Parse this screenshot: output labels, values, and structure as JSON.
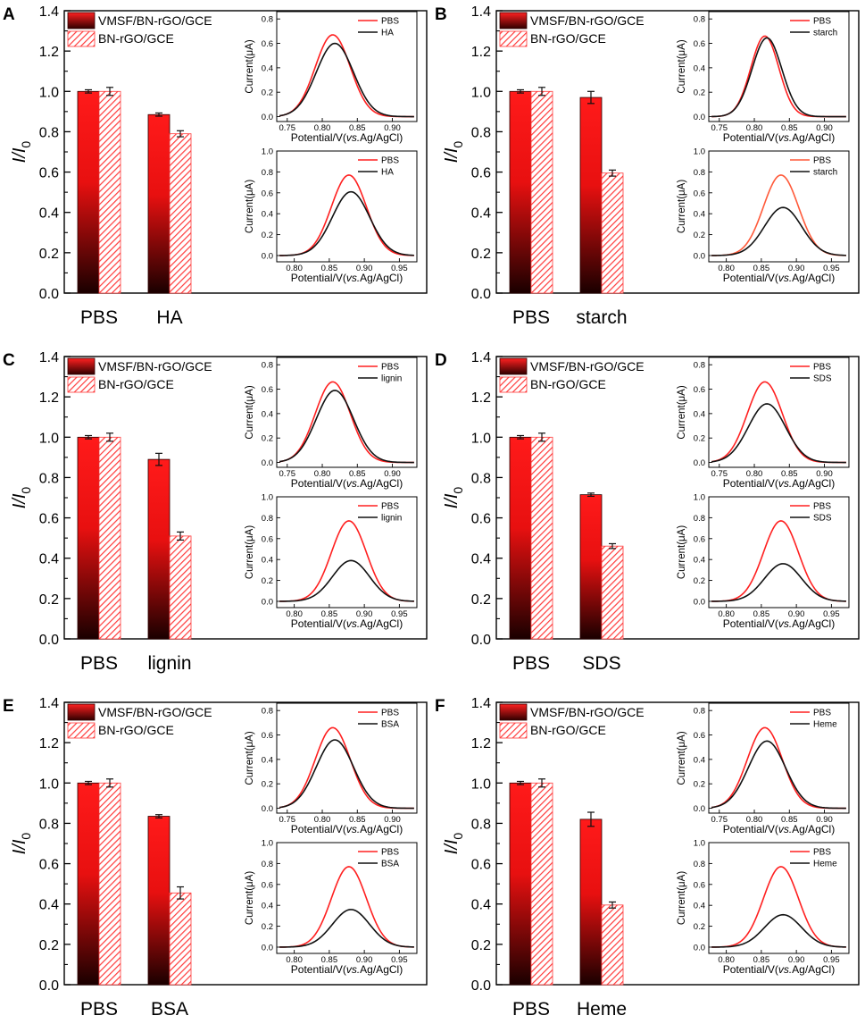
{
  "figure": {
    "ylabel": "I/I0",
    "ylabel_main": "I/I",
    "ylabel_sub": "0",
    "bar_legend": [
      "VMSF/BN-rGO/GCE",
      "BN-rGO/GCE"
    ],
    "inset_xlabel_prefix": "Potential/V(",
    "inset_xlabel_vs": "vs.",
    "inset_xlabel_suffix": "Ag/AgCl)",
    "inset_ylabel": "Current(μA)",
    "colors": {
      "red": "#ff1a1a",
      "dark": "#1a0000",
      "curve_red": "#ff2020",
      "curve_orange": "#ff5a3a",
      "curve_black": "#111111"
    }
  },
  "chart_data": [
    {
      "panel": "A",
      "type": "bar",
      "interferent": "HA",
      "categories": [
        "PBS",
        "HA"
      ],
      "ylim": [
        0,
        1.4
      ],
      "yticks": [
        "0.0",
        "0.2",
        "0.4",
        "0.6",
        "0.8",
        "1.0",
        "1.2",
        "1.4"
      ],
      "series": [
        {
          "name": "VMSF/BN-rGO/GCE",
          "values": [
            1.0,
            0.885
          ],
          "errors": [
            0.008,
            0.008
          ]
        },
        {
          "name": "BN-rGO/GCE",
          "values": [
            1.0,
            0.79
          ],
          "errors": [
            0.02,
            0.015
          ]
        }
      ],
      "insets": [
        {
          "type": "line",
          "xlim": [
            0.735,
            0.935
          ],
          "ylim": [
            -0.04,
            0.86
          ],
          "xticks": [
            "0.75",
            "0.80",
            "0.85",
            "0.90"
          ],
          "yticks": [
            "0.0",
            "0.2",
            "0.4",
            "0.6",
            "0.8"
          ],
          "center": 0.815,
          "sigma": 0.025,
          "series": [
            {
              "name": "PBS",
              "peak": 0.67
            },
            {
              "name": "HA",
              "peak": 0.6
            }
          ]
        },
        {
          "type": "line",
          "xlim": [
            0.775,
            0.975
          ],
          "ylim": [
            -0.06,
            1.0
          ],
          "xticks": [
            "0.80",
            "0.85",
            "0.90",
            "0.95"
          ],
          "yticks": [
            "0.0",
            "0.2",
            "0.4",
            "0.6",
            "0.8",
            "1.0"
          ],
          "center": 0.878,
          "sigma": 0.025,
          "series": [
            {
              "name": "PBS",
              "peak": 0.77
            },
            {
              "name": "HA",
              "peak": 0.61
            }
          ]
        }
      ]
    },
    {
      "panel": "B",
      "type": "bar",
      "interferent": "starch",
      "categories": [
        "PBS",
        "starch"
      ],
      "ylim": [
        0,
        1.4
      ],
      "yticks": [
        "0.0",
        "0.2",
        "0.4",
        "0.6",
        "0.8",
        "1.0",
        "1.2",
        "1.4"
      ],
      "series": [
        {
          "name": "VMSF/BN-rGO/GCE",
          "values": [
            1.0,
            0.97
          ],
          "errors": [
            0.008,
            0.03
          ]
        },
        {
          "name": "BN-rGO/GCE",
          "values": [
            1.0,
            0.595
          ],
          "errors": [
            0.02,
            0.015
          ]
        }
      ],
      "insets": [
        {
          "type": "line",
          "xlim": [
            0.735,
            0.935
          ],
          "ylim": [
            -0.04,
            0.86
          ],
          "xticks": [
            "0.75",
            "0.80",
            "0.85",
            "0.90"
          ],
          "yticks": [
            "0.0",
            "0.2",
            "0.4",
            "0.6",
            "0.8"
          ],
          "center": 0.815,
          "sigma": 0.02,
          "series": [
            {
              "name": "PBS",
              "peak": 0.66
            },
            {
              "name": "starch",
              "peak": 0.645
            }
          ]
        },
        {
          "type": "line",
          "xlim": [
            0.775,
            0.975
          ],
          "ylim": [
            -0.06,
            1.0
          ],
          "xticks": [
            "0.80",
            "0.85",
            "0.90",
            "0.95"
          ],
          "yticks": [
            "0.0",
            "0.2",
            "0.4",
            "0.6",
            "0.8",
            "1.0"
          ],
          "center": 0.878,
          "sigma": 0.025,
          "series": [
            {
              "name": "PBS",
              "peak": 0.77
            },
            {
              "name": "starch",
              "peak": 0.46
            }
          ]
        }
      ]
    },
    {
      "panel": "C",
      "type": "bar",
      "interferent": "lignin",
      "categories": [
        "PBS",
        "lignin"
      ],
      "ylim": [
        0,
        1.4
      ],
      "yticks": [
        "0.0",
        "0.2",
        "0.4",
        "0.6",
        "0.8",
        "1.0",
        "1.2",
        "1.4"
      ],
      "series": [
        {
          "name": "VMSF/BN-rGO/GCE",
          "values": [
            1.0,
            0.89
          ],
          "errors": [
            0.008,
            0.03
          ]
        },
        {
          "name": "BN-rGO/GCE",
          "values": [
            1.0,
            0.51
          ],
          "errors": [
            0.02,
            0.02
          ]
        }
      ],
      "insets": [
        {
          "type": "line",
          "xlim": [
            0.735,
            0.935
          ],
          "ylim": [
            -0.04,
            0.86
          ],
          "xticks": [
            "0.75",
            "0.80",
            "0.85",
            "0.90"
          ],
          "yticks": [
            "0.0",
            "0.2",
            "0.4",
            "0.6",
            "0.8"
          ],
          "center": 0.815,
          "sigma": 0.025,
          "series": [
            {
              "name": "PBS",
              "peak": 0.66
            },
            {
              "name": "lignin",
              "peak": 0.59
            }
          ]
        },
        {
          "type": "line",
          "xlim": [
            0.775,
            0.975
          ],
          "ylim": [
            -0.06,
            1.0
          ],
          "xticks": [
            "0.80",
            "0.85",
            "0.90",
            "0.95"
          ],
          "yticks": [
            "0.0",
            "0.2",
            "0.4",
            "0.6",
            "0.8",
            "1.0"
          ],
          "center": 0.878,
          "sigma": 0.025,
          "series": [
            {
              "name": "PBS",
              "peak": 0.77
            },
            {
              "name": "lignin",
              "peak": 0.39
            }
          ]
        }
      ]
    },
    {
      "panel": "D",
      "type": "bar",
      "interferent": "SDS",
      "categories": [
        "PBS",
        "SDS"
      ],
      "ylim": [
        0,
        1.4
      ],
      "yticks": [
        "0.0",
        "0.2",
        "0.4",
        "0.6",
        "0.8",
        "1.0",
        "1.2",
        "1.4"
      ],
      "series": [
        {
          "name": "VMSF/BN-rGO/GCE",
          "values": [
            1.0,
            0.715
          ],
          "errors": [
            0.008,
            0.008
          ]
        },
        {
          "name": "BN-rGO/GCE",
          "values": [
            1.0,
            0.46
          ],
          "errors": [
            0.02,
            0.012
          ]
        }
      ],
      "insets": [
        {
          "type": "line",
          "xlim": [
            0.735,
            0.935
          ],
          "ylim": [
            -0.04,
            0.86
          ],
          "xticks": [
            "0.75",
            "0.80",
            "0.85",
            "0.90"
          ],
          "yticks": [
            "0.0",
            "0.2",
            "0.4",
            "0.6",
            "0.8"
          ],
          "center": 0.815,
          "sigma": 0.025,
          "series": [
            {
              "name": "PBS",
              "peak": 0.66
            },
            {
              "name": "SDS",
              "peak": 0.48
            }
          ]
        },
        {
          "type": "line",
          "xlim": [
            0.775,
            0.975
          ],
          "ylim": [
            -0.06,
            1.0
          ],
          "xticks": [
            "0.80",
            "0.85",
            "0.90",
            "0.95"
          ],
          "yticks": [
            "0.0",
            "0.2",
            "0.4",
            "0.6",
            "0.8",
            "1.0"
          ],
          "center": 0.878,
          "sigma": 0.025,
          "series": [
            {
              "name": "PBS",
              "peak": 0.77
            },
            {
              "name": "SDS",
              "peak": 0.36
            }
          ]
        }
      ]
    },
    {
      "panel": "E",
      "type": "bar",
      "interferent": "BSA",
      "categories": [
        "PBS",
        "BSA"
      ],
      "ylim": [
        0,
        1.4
      ],
      "yticks": [
        "0.0",
        "0.2",
        "0.4",
        "0.6",
        "0.8",
        "1.0",
        "1.2",
        "1.4"
      ],
      "series": [
        {
          "name": "VMSF/BN-rGO/GCE",
          "values": [
            1.0,
            0.835
          ],
          "errors": [
            0.008,
            0.008
          ]
        },
        {
          "name": "BN-rGO/GCE",
          "values": [
            1.0,
            0.455
          ],
          "errors": [
            0.02,
            0.03
          ]
        }
      ],
      "insets": [
        {
          "type": "line",
          "xlim": [
            0.735,
            0.935
          ],
          "ylim": [
            -0.04,
            0.86
          ],
          "xticks": [
            "0.75",
            "0.80",
            "0.85",
            "0.90"
          ],
          "yticks": [
            "0.0",
            "0.2",
            "0.4",
            "0.6",
            "0.8"
          ],
          "center": 0.815,
          "sigma": 0.025,
          "series": [
            {
              "name": "PBS",
              "peak": 0.66
            },
            {
              "name": "BSA",
              "peak": 0.56
            }
          ]
        },
        {
          "type": "line",
          "xlim": [
            0.775,
            0.975
          ],
          "ylim": [
            -0.06,
            1.0
          ],
          "xticks": [
            "0.80",
            "0.85",
            "0.90",
            "0.95"
          ],
          "yticks": [
            "0.0",
            "0.2",
            "0.4",
            "0.6",
            "0.8",
            "1.0"
          ],
          "center": 0.878,
          "sigma": 0.025,
          "series": [
            {
              "name": "PBS",
              "peak": 0.77
            },
            {
              "name": "BSA",
              "peak": 0.36
            }
          ]
        }
      ]
    },
    {
      "panel": "F",
      "type": "bar",
      "interferent": "Heme",
      "categories": [
        "PBS",
        "Heme"
      ],
      "ylim": [
        0,
        1.4
      ],
      "yticks": [
        "0.0",
        "0.2",
        "0.4",
        "0.6",
        "0.8",
        "1.0",
        "1.2",
        "1.4"
      ],
      "series": [
        {
          "name": "VMSF/BN-rGO/GCE",
          "values": [
            1.0,
            0.82
          ],
          "errors": [
            0.008,
            0.035
          ]
        },
        {
          "name": "BN-rGO/GCE",
          "values": [
            1.0,
            0.395
          ],
          "errors": [
            0.02,
            0.015
          ]
        }
      ],
      "insets": [
        {
          "type": "line",
          "xlim": [
            0.735,
            0.935
          ],
          "ylim": [
            -0.04,
            0.86
          ],
          "xticks": [
            "0.75",
            "0.80",
            "0.85",
            "0.90"
          ],
          "yticks": [
            "0.0",
            "0.2",
            "0.4",
            "0.6",
            "0.8"
          ],
          "center": 0.815,
          "sigma": 0.025,
          "series": [
            {
              "name": "PBS",
              "peak": 0.66
            },
            {
              "name": "Heme",
              "peak": 0.55
            }
          ]
        },
        {
          "type": "line",
          "xlim": [
            0.775,
            0.975
          ],
          "ylim": [
            -0.06,
            1.0
          ],
          "xticks": [
            "0.80",
            "0.85",
            "0.90",
            "0.95"
          ],
          "yticks": [
            "0.0",
            "0.2",
            "0.4",
            "0.6",
            "0.8",
            "1.0"
          ],
          "center": 0.878,
          "sigma": 0.025,
          "series": [
            {
              "name": "PBS",
              "peak": 0.77
            },
            {
              "name": "Heme",
              "peak": 0.31
            }
          ]
        }
      ]
    }
  ]
}
